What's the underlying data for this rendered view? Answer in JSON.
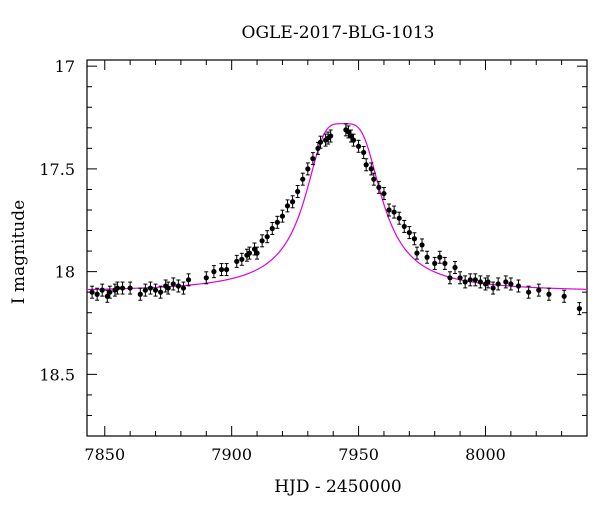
{
  "chart_data": {
    "type": "scatter",
    "title": "OGLE-2017-BLG-1013",
    "xlabel": "HJD - 2450000",
    "ylabel": "I magnitude",
    "xlim": [
      7843,
      8040
    ],
    "ylim": [
      18.8,
      16.97
    ],
    "y_inverted": true,
    "x_ticks": [
      7850,
      7900,
      7950,
      8000
    ],
    "x_tick_labels": [
      "7850",
      "7900",
      "7950",
      "8000"
    ],
    "y_ticks": [
      17,
      17.5,
      18,
      18.5
    ],
    "y_tick_labels": [
      "17",
      "17.5",
      "18",
      "18.5"
    ],
    "grid": false,
    "model_color": "#e000e0",
    "point_color": "#000000",
    "model": {
      "name": "",
      "t0": 7944,
      "peak_mag": 17.28,
      "baseline_mag": 18.1,
      "width": 12.5
    },
    "series": [
      {
        "x": [
          7845,
          7847,
          7849,
          7851,
          7852,
          7854,
          7855,
          7857,
          7860,
          7864,
          7866,
          7868,
          7870,
          7872,
          7874,
          7875,
          7877,
          7879,
          7881,
          7883,
          7890,
          7893,
          7896,
          7898,
          7902,
          7904,
          7906,
          7907,
          7909,
          7910,
          7912,
          7914,
          7916,
          7918,
          7920,
          7922,
          7924,
          7926,
          7928,
          7930,
          7932,
          7934,
          7935,
          7937,
          7938,
          7939,
          7945,
          7946,
          7947,
          7948,
          7950,
          7952,
          7953,
          7955,
          7956,
          7958,
          7960,
          7962,
          7964,
          7966,
          7968,
          7970,
          7972,
          7973,
          7975,
          7977,
          7980,
          7982,
          7984,
          7986,
          7988,
          7990,
          7992,
          7994,
          7996,
          7998,
          8000,
          8001,
          8003,
          8005,
          8008,
          8010,
          8013,
          8017,
          8021,
          8025,
          8031,
          8037
        ],
        "y": [
          18.1,
          18.11,
          18.09,
          18.12,
          18.1,
          18.09,
          18.08,
          18.08,
          18.08,
          18.11,
          18.09,
          18.08,
          18.09,
          18.1,
          18.07,
          18.08,
          18.06,
          18.07,
          18.08,
          18.04,
          18.03,
          18.0,
          17.99,
          17.99,
          17.95,
          17.94,
          17.92,
          17.91,
          17.89,
          17.91,
          17.85,
          17.83,
          17.79,
          17.76,
          17.73,
          17.68,
          17.66,
          17.61,
          17.55,
          17.5,
          17.45,
          17.4,
          17.37,
          17.36,
          17.35,
          17.34,
          17.31,
          17.32,
          17.34,
          17.36,
          17.39,
          17.42,
          17.48,
          17.5,
          17.55,
          17.59,
          17.62,
          17.7,
          17.71,
          17.74,
          17.78,
          17.81,
          17.84,
          17.91,
          17.87,
          17.93,
          17.96,
          17.93,
          17.96,
          18.03,
          17.98,
          18.03,
          18.05,
          18.04,
          18.04,
          18.05,
          18.06,
          18.05,
          18.08,
          18.06,
          18.05,
          18.06,
          18.07,
          18.1,
          18.09,
          18.11,
          18.12,
          18.18
        ]
      }
    ]
  }
}
